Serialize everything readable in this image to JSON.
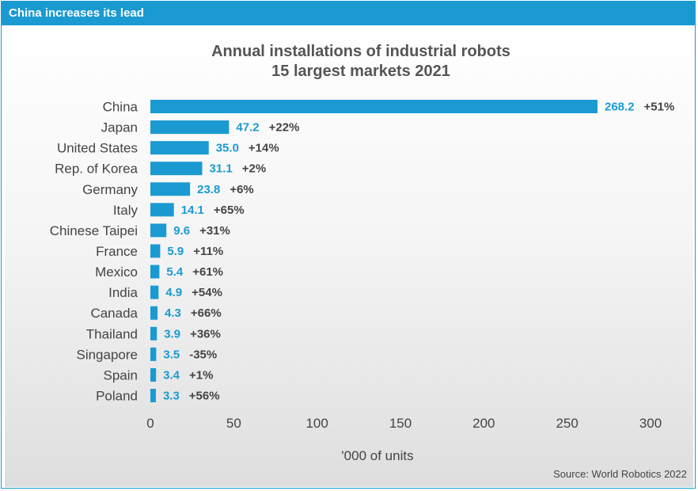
{
  "header": {
    "title": "China increases its lead"
  },
  "source": "Source: World Robotics 2022",
  "colors": {
    "accent": "#1b9ad1",
    "text": "#444444"
  },
  "chart_data": {
    "type": "bar",
    "orientation": "horizontal",
    "title": "Annual installations of industrial robots",
    "subtitle": "15 largest markets 2021",
    "xlabel": "'000 of units",
    "ylabel": "",
    "xlim": [
      0,
      300
    ],
    "xticks": [
      "0",
      "50",
      "100",
      "150",
      "200",
      "250",
      "300"
    ],
    "grid": false,
    "categories": [
      "China",
      "Japan",
      "United States",
      "Rep. of Korea",
      "Germany",
      "Italy",
      "Chinese Taipei",
      "France",
      "Mexico",
      "India",
      "Canada",
      "Thailand",
      "Singapore",
      "Spain",
      "Poland"
    ],
    "values": [
      268.2,
      47.2,
      35.0,
      31.1,
      23.8,
      14.1,
      9.6,
      5.9,
      5.4,
      4.9,
      4.3,
      3.9,
      3.5,
      3.4,
      3.3
    ],
    "value_labels": [
      "268.2",
      "47.2",
      "35.0",
      "31.1",
      "23.8",
      "14.1",
      "9.6",
      "5.9",
      "5.4",
      "4.9",
      "4.3",
      "3.9",
      "3.5",
      "3.4",
      "3.3"
    ],
    "changes": [
      "+51%",
      "+22%",
      "+14%",
      "+2%",
      "+6%",
      "+65%",
      "+31%",
      "+11%",
      "+61%",
      "+54%",
      "+66%",
      "+36%",
      "-35%",
      "+1%",
      "+56%"
    ]
  }
}
